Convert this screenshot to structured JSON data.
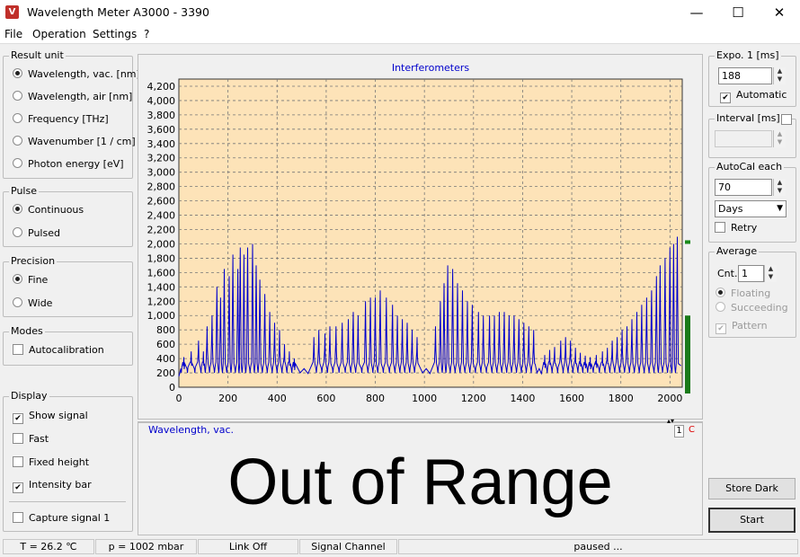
{
  "window": {
    "title": "Wavelength Meter  A3000   - 3390",
    "minimize": "—",
    "maximize": "☐",
    "close": "✕"
  },
  "menu": [
    "File",
    "Operation",
    "Settings",
    "?"
  ],
  "result_unit": {
    "title": "Result unit",
    "options": [
      "Wavelength, vac.  [nm]",
      "Wavelength, air  [nm]",
      "Frequency  [THz]",
      "Wavenumber  [1 / cm]",
      "Photon energy  [eV]"
    ],
    "selected": 0
  },
  "pulse": {
    "title": "Pulse",
    "options": [
      "Continuous",
      "Pulsed"
    ],
    "selected": 0
  },
  "precision": {
    "title": "Precision",
    "options": [
      "Fine",
      "Wide"
    ],
    "selected": 0
  },
  "modes": {
    "title": "Modes",
    "autocalibration": "Autocalibration"
  },
  "display_opts": {
    "title": "Display",
    "show_signal": "Show signal",
    "fast": "Fast",
    "fixed_height": "Fixed height",
    "intensity_bar": "Intensity bar",
    "capture": "Capture signal 1"
  },
  "chart_title": "Interferometers",
  "chart_data": {
    "type": "line",
    "title": "Interferometers",
    "xlabel": "",
    "ylabel": "",
    "xlim": [
      0,
      2050
    ],
    "ylim": [
      0,
      4300
    ],
    "x_ticks": [
      "0",
      "200",
      "400",
      "600",
      "800",
      "1000",
      "1200",
      "1400",
      "1600",
      "1800",
      "2000"
    ],
    "y_ticks": [
      "0",
      "200",
      "400",
      "600",
      "800",
      "1,000",
      "1,200",
      "1,400",
      "1,600",
      "1,800",
      "2,000",
      "2,200",
      "2,400",
      "2,600",
      "2,800",
      "3,000",
      "3,200",
      "3,400",
      "3,600",
      "3,800",
      "4,000",
      "4,200"
    ],
    "grid": true,
    "series": [
      {
        "color": "#0000cc",
        "peaks": [
          [
            20,
            420
          ],
          [
            50,
            500
          ],
          [
            80,
            650
          ],
          [
            100,
            500
          ],
          [
            115,
            850
          ],
          [
            135,
            1000
          ],
          [
            155,
            1400
          ],
          [
            170,
            1250
          ],
          [
            185,
            1650
          ],
          [
            205,
            1550
          ],
          [
            220,
            1850
          ],
          [
            240,
            1650
          ],
          [
            250,
            1950
          ],
          [
            265,
            1850
          ],
          [
            280,
            1950
          ],
          [
            300,
            2000
          ],
          [
            315,
            1700
          ],
          [
            330,
            1500
          ],
          [
            350,
            1300
          ],
          [
            370,
            1050
          ],
          [
            390,
            900
          ],
          [
            410,
            800
          ],
          [
            430,
            600
          ],
          [
            450,
            500
          ],
          [
            470,
            400
          ],
          [
            550,
            700
          ],
          [
            570,
            800
          ],
          [
            595,
            750
          ],
          [
            615,
            850
          ],
          [
            640,
            850
          ],
          [
            665,
            900
          ],
          [
            690,
            950
          ],
          [
            710,
            1050
          ],
          [
            730,
            1000
          ],
          [
            760,
            1200
          ],
          [
            780,
            1250
          ],
          [
            800,
            1250
          ],
          [
            820,
            1350
          ],
          [
            845,
            1250
          ],
          [
            870,
            1150
          ],
          [
            890,
            1000
          ],
          [
            910,
            950
          ],
          [
            930,
            900
          ],
          [
            950,
            800
          ],
          [
            970,
            700
          ],
          [
            1045,
            850
          ],
          [
            1065,
            1200
          ],
          [
            1080,
            1450
          ],
          [
            1095,
            1700
          ],
          [
            1115,
            1650
          ],
          [
            1135,
            1450
          ],
          [
            1155,
            1350
          ],
          [
            1175,
            1200
          ],
          [
            1195,
            1150
          ],
          [
            1220,
            1050
          ],
          [
            1240,
            1000
          ],
          [
            1265,
            1000
          ],
          [
            1285,
            1000
          ],
          [
            1305,
            1050
          ],
          [
            1325,
            1050
          ],
          [
            1345,
            1000
          ],
          [
            1365,
            1000
          ],
          [
            1385,
            950
          ],
          [
            1405,
            900
          ],
          [
            1425,
            850
          ],
          [
            1445,
            800
          ],
          [
            1490,
            450
          ],
          [
            1510,
            520
          ],
          [
            1530,
            560
          ],
          [
            1555,
            650
          ],
          [
            1575,
            700
          ],
          [
            1595,
            650
          ],
          [
            1615,
            550
          ],
          [
            1635,
            480
          ],
          [
            1655,
            440
          ],
          [
            1675,
            420
          ],
          [
            1700,
            450
          ],
          [
            1725,
            500
          ],
          [
            1745,
            550
          ],
          [
            1765,
            650
          ],
          [
            1785,
            700
          ],
          [
            1805,
            800
          ],
          [
            1825,
            850
          ],
          [
            1845,
            950
          ],
          [
            1865,
            1050
          ],
          [
            1885,
            1150
          ],
          [
            1905,
            1250
          ],
          [
            1925,
            1350
          ],
          [
            1945,
            1550
          ],
          [
            1960,
            1700
          ],
          [
            1980,
            1800
          ],
          [
            2000,
            1950
          ],
          [
            2015,
            2000
          ],
          [
            2030,
            2100
          ]
        ]
      }
    ]
  },
  "display_label": "Wavelength,  vac.",
  "channel": "1",
  "channel_c": "C",
  "readout": "Out of Range",
  "expo": {
    "title": "Expo. 1  [ms]",
    "value": "188",
    "automatic": "Automatic"
  },
  "interval": {
    "title": "Interval [ms]"
  },
  "autocal": {
    "title": "AutoCal each",
    "value": "70",
    "unit": "Days",
    "retry": "Retry"
  },
  "average": {
    "title": "Average",
    "cnt_label": "Cnt.",
    "cnt": "1",
    "floating": "Floating",
    "succeeding": "Succeeding",
    "pattern": "Pattern"
  },
  "buttons": {
    "store_dark": "Store Dark",
    "start": "Start"
  },
  "statusbar": {
    "temp": "T = 26.2 ℃",
    "pressure": "p = 1002 mbar",
    "link": "Link Off",
    "signal": "Signal Channel",
    "state": "paused ..."
  }
}
